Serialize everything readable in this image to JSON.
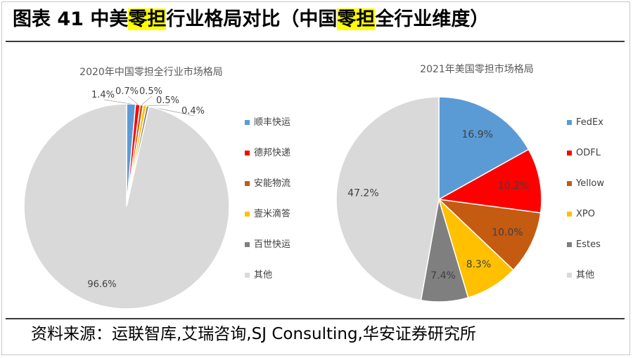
{
  "header": {
    "segments": [
      {
        "text": "图表 41 中美",
        "highlight": false
      },
      {
        "text": "零担",
        "highlight": true
      },
      {
        "text": "行业格局对比（中国",
        "highlight": false
      },
      {
        "text": "零担",
        "highlight": true
      },
      {
        "text": "全行业维度）",
        "highlight": false
      }
    ],
    "highlight_color": "#ffff00"
  },
  "source": "资料来源：运联智库,艾瑞咨询,SJ Consulting,华安证券研究所",
  "chart_data": [
    {
      "type": "pie",
      "title": "2020年中国零担全行业市场格局",
      "categories": [
        "顺丰快运",
        "德邦快递",
        "安能物流",
        "壹米滴答",
        "百世快运",
        "其他"
      ],
      "values": [
        1.4,
        0.7,
        0.5,
        0.5,
        0.4,
        96.6
      ],
      "labels": [
        "1.4%",
        "0.7%",
        "0.5%",
        "0.5%",
        "0.4%",
        "96.6%"
      ],
      "colors": [
        "#5b9bd5",
        "#ff0000",
        "#c55a11",
        "#ffc000",
        "#7f7f7f",
        "#d9d9d9"
      ],
      "legend_position": "right",
      "start_angle_deg": 0,
      "direction": "clockwise"
    },
    {
      "type": "pie",
      "title": "2021年美国零担市场格局",
      "categories": [
        "FedEx",
        "ODFL",
        "Yellow",
        "XPO",
        "Estes",
        "其他"
      ],
      "values": [
        16.9,
        10.2,
        10.0,
        8.3,
        7.4,
        47.2
      ],
      "labels": [
        "16.9%",
        "10.2%",
        "10.0%",
        "8.3%",
        "7.4%",
        "47.2%"
      ],
      "colors": [
        "#5b9bd5",
        "#ff0000",
        "#c55a11",
        "#ffc000",
        "#7f7f7f",
        "#d9d9d9"
      ],
      "legend_position": "right",
      "start_angle_deg": 0,
      "direction": "clockwise"
    }
  ]
}
